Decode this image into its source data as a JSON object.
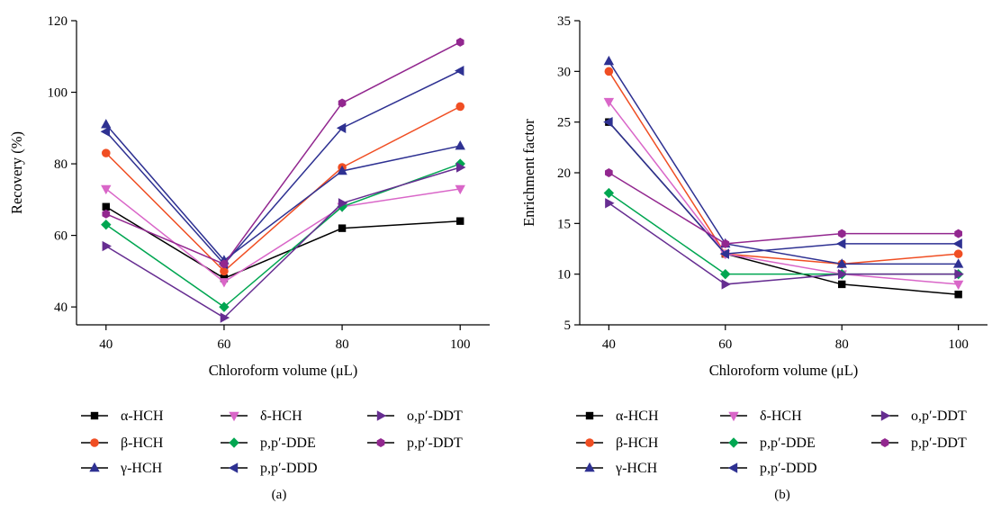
{
  "chart_data": [
    {
      "type": "line",
      "panel_label": "(a)",
      "xlabel": "Chloroform volume (μL)",
      "ylabel": "Recovery (%)",
      "x": [
        40,
        60,
        80,
        100
      ],
      "xticks": [
        "40",
        "60",
        "80",
        "100"
      ],
      "xlim": [
        35,
        105
      ],
      "ylim": [
        35,
        120
      ],
      "yticks": [
        "40",
        "60",
        "80",
        "100",
        "120"
      ],
      "legend_position": "bottom",
      "series": [
        {
          "name": "α-HCH",
          "color": "#000000",
          "marker": "square",
          "values": [
            68,
            48,
            62,
            64
          ]
        },
        {
          "name": "β-HCH",
          "color": "#f04e23",
          "marker": "circle",
          "values": [
            83,
            50,
            79,
            96
          ]
        },
        {
          "name": "γ-HCH",
          "color": "#2e3192",
          "marker": "triangle-up",
          "values": [
            91,
            53,
            78,
            85
          ]
        },
        {
          "name": "δ-HCH",
          "color": "#d966c8",
          "marker": "triangle-down",
          "values": [
            73,
            47,
            68,
            73
          ]
        },
        {
          "name": "p,p′-DDE",
          "color": "#00a651",
          "marker": "diamond",
          "values": [
            63,
            40,
            68,
            80
          ]
        },
        {
          "name": "p,p′-DDD",
          "color": "#2e3192",
          "marker": "triangle-left",
          "values": [
            89,
            52,
            90,
            106
          ]
        },
        {
          "name": "o,p′-DDT",
          "color": "#662d91",
          "marker": "triangle-right",
          "values": [
            57,
            37,
            69,
            79
          ]
        },
        {
          "name": "p,p′-DDT",
          "color": "#92278f",
          "marker": "hexagon",
          "values": [
            66,
            52,
            97,
            114
          ]
        }
      ]
    },
    {
      "type": "line",
      "panel_label": "(b)",
      "xlabel": "Chloroform volume (μL)",
      "ylabel": "Enrichment factor",
      "x": [
        40,
        60,
        80,
        100
      ],
      "xticks": [
        "40",
        "60",
        "80",
        "100"
      ],
      "xlim": [
        35,
        105
      ],
      "ylim": [
        5,
        35
      ],
      "yticks": [
        "5",
        "10",
        "15",
        "20",
        "25",
        "30",
        "35"
      ],
      "legend_position": "bottom",
      "series": [
        {
          "name": "α-HCH",
          "color": "#000000",
          "marker": "square",
          "values": [
            25,
            12,
            9,
            8
          ]
        },
        {
          "name": "β-HCH",
          "color": "#f04e23",
          "marker": "circle",
          "values": [
            30,
            12,
            11,
            12
          ]
        },
        {
          "name": "γ-HCH",
          "color": "#2e3192",
          "marker": "triangle-up",
          "values": [
            31,
            13,
            11,
            11
          ]
        },
        {
          "name": "δ-HCH",
          "color": "#d966c8",
          "marker": "triangle-down",
          "values": [
            27,
            12,
            10,
            9
          ]
        },
        {
          "name": "p,p′-DDE",
          "color": "#00a651",
          "marker": "diamond",
          "values": [
            18,
            10,
            10,
            10
          ]
        },
        {
          "name": "p,p′-DDD",
          "color": "#2e3192",
          "marker": "triangle-left",
          "values": [
            25,
            12,
            13,
            13
          ]
        },
        {
          "name": "o,p′-DDT",
          "color": "#662d91",
          "marker": "triangle-right",
          "values": [
            17,
            9,
            10,
            10
          ]
        },
        {
          "name": "p,p′-DDT",
          "color": "#92278f",
          "marker": "hexagon",
          "values": [
            20,
            13,
            14,
            14
          ]
        }
      ]
    }
  ]
}
